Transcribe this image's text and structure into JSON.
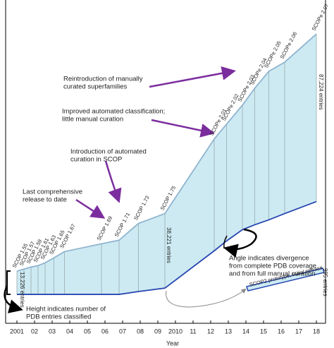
{
  "chart_data": {
    "type": "band",
    "x": [
      2001.0,
      2001.4,
      2001.8,
      2002.2,
      2002.6,
      2003.1,
      2003.7,
      2005.8,
      2006.8,
      2007.9,
      2009.4,
      2012.2,
      2012.9,
      2013.8,
      2014.5,
      2015.3,
      2016.2,
      2018.0
    ],
    "release_labels": [
      "SCOP 1.55",
      "SCOP 1.57",
      "SCOP 1.59",
      "SCOP 1.61",
      "SCOP 1.63",
      "SCOP 1.65",
      "SCOP 1.67",
      "SCOP 1.69",
      "SCOP 1.71",
      "SCOP 1.73",
      "SCOP 1.75",
      "SCOPe 2.01",
      "SCOPe 2.02",
      "SCOPe 2.03",
      "SCOPe 2.04",
      "SCOPe 2.05",
      "SCOPe 2.06",
      "SCOPe 2.07"
    ],
    "series": [
      {
        "color": "#2746b0",
        "values": [
          15200,
          15200,
          15200,
          15200,
          15200,
          15200,
          15200,
          15200,
          15200,
          16700,
          18500,
          38100,
          43300,
          49200,
          51800,
          54400,
          57700,
          64000
        ]
      },
      {
        "color": "#8fb4cf",
        "values": [
          27400,
          28500,
          29600,
          30300,
          31800,
          34400,
          37700,
          41800,
          43700,
          52500,
          57700,
          96900,
          104700,
          114700,
          123600,
          132500,
          137300,
          152100
        ]
      }
    ],
    "fill": "#cdeaf3",
    "xlim": [
      2000.36,
      2018.52
    ],
    "ylim": [
      0,
      170000
    ],
    "xticks": [
      2001,
      {
        "value": 2002,
        "label": "02"
      },
      {
        "value": 2003,
        "label": "03"
      },
      {
        "value": 2004,
        "label": "04"
      },
      {
        "value": 2005,
        "label": "05"
      },
      {
        "value": 2006,
        "label": "06"
      },
      {
        "value": 2007,
        "label": "07"
      },
      {
        "value": 2008,
        "label": "08"
      },
      {
        "value": 2009,
        "label": "09"
      },
      2010,
      {
        "value": 2011,
        "label": "11"
      },
      {
        "value": 2012,
        "label": "12"
      },
      {
        "value": 2013,
        "label": "13"
      },
      {
        "value": 2014,
        "label": "14"
      },
      {
        "value": 2015,
        "label": "15"
      },
      {
        "value": 2016,
        "label": "16"
      },
      {
        "value": 2017,
        "label": "17"
      },
      {
        "value": 2018,
        "label": "18"
      }
    ],
    "xlabel": "Year",
    "annotations": [
      {
        "lines": [
          "Reintroduction of manually",
          "curated superfamilies"
        ]
      },
      {
        "lines": [
          "Improved automated classification;",
          "little manual curation"
        ]
      },
      {
        "lines": [
          "Introduction of automated",
          "curation in SCOP"
        ]
      },
      {
        "lines": [
          "Last comprehensive",
          "release to date"
        ]
      },
      {
        "lines": [
          "Height indicates number of",
          "PDB entries classified"
        ]
      },
      {
        "lines": [
          "Angle indicates divergence",
          "from complete PDB coverage",
          "and from full manual curation"
        ]
      }
    ],
    "entry_labels": [
      "13,226 entries",
      "38,221 entries",
      "87,224 entries",
      "995 entries"
    ],
    "scop2_label": "SCOP2 prototype, initial release"
  }
}
